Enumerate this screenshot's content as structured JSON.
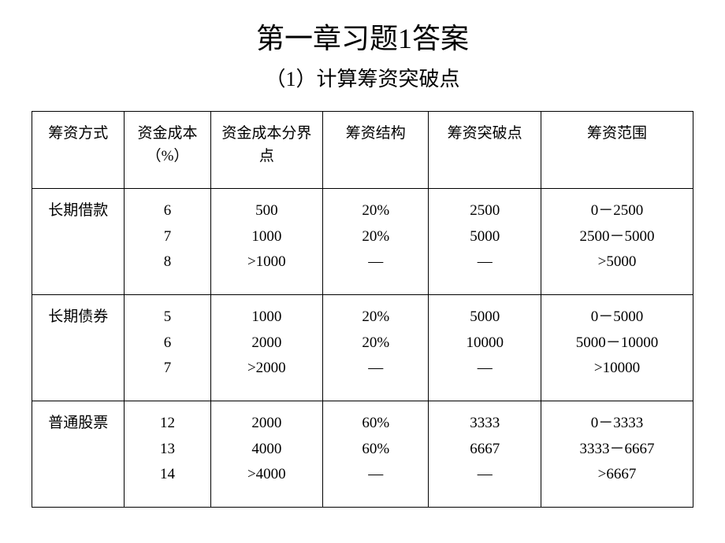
{
  "title": "第一章习题1答案",
  "subtitle": "（1）计算筹资突破点",
  "table": {
    "headers": [
      "筹资方式",
      "资金成本（%）",
      "资金成本分界点",
      "筹资结构",
      "筹资突破点",
      "筹资范围"
    ],
    "rows": [
      {
        "method": "长期借款",
        "cost": [
          "6",
          "7",
          "8"
        ],
        "cutoff": [
          "500",
          "1000",
          ">1000"
        ],
        "structure": [
          "20%",
          "20%",
          "—"
        ],
        "breakpoint": [
          "2500",
          "5000",
          "—"
        ],
        "range": [
          "0－2500",
          "2500－5000",
          ">5000"
        ]
      },
      {
        "method": "长期债券",
        "cost": [
          "5",
          "6",
          "7"
        ],
        "cutoff": [
          "1000",
          "2000",
          ">2000"
        ],
        "structure": [
          "20%",
          "20%",
          "—"
        ],
        "breakpoint": [
          "5000",
          "10000",
          "—"
        ],
        "range": [
          "0－5000",
          "5000－10000",
          ">10000"
        ]
      },
      {
        "method": "普通股票",
        "cost": [
          "12",
          "13",
          "14"
        ],
        "cutoff": [
          "2000",
          "4000",
          ">4000"
        ],
        "structure": [
          "60%",
          "60%",
          "—"
        ],
        "breakpoint": [
          "3333",
          "6667",
          "—"
        ],
        "range": [
          "0－3333",
          "3333－6667",
          ">6667"
        ]
      }
    ]
  },
  "styles": {
    "background_color": "#ffffff",
    "text_color": "#000000",
    "border_color": "#000000",
    "title_fontsize": 36,
    "subtitle_fontsize": 26,
    "cell_fontsize": 19,
    "font_family": "SimSun"
  }
}
